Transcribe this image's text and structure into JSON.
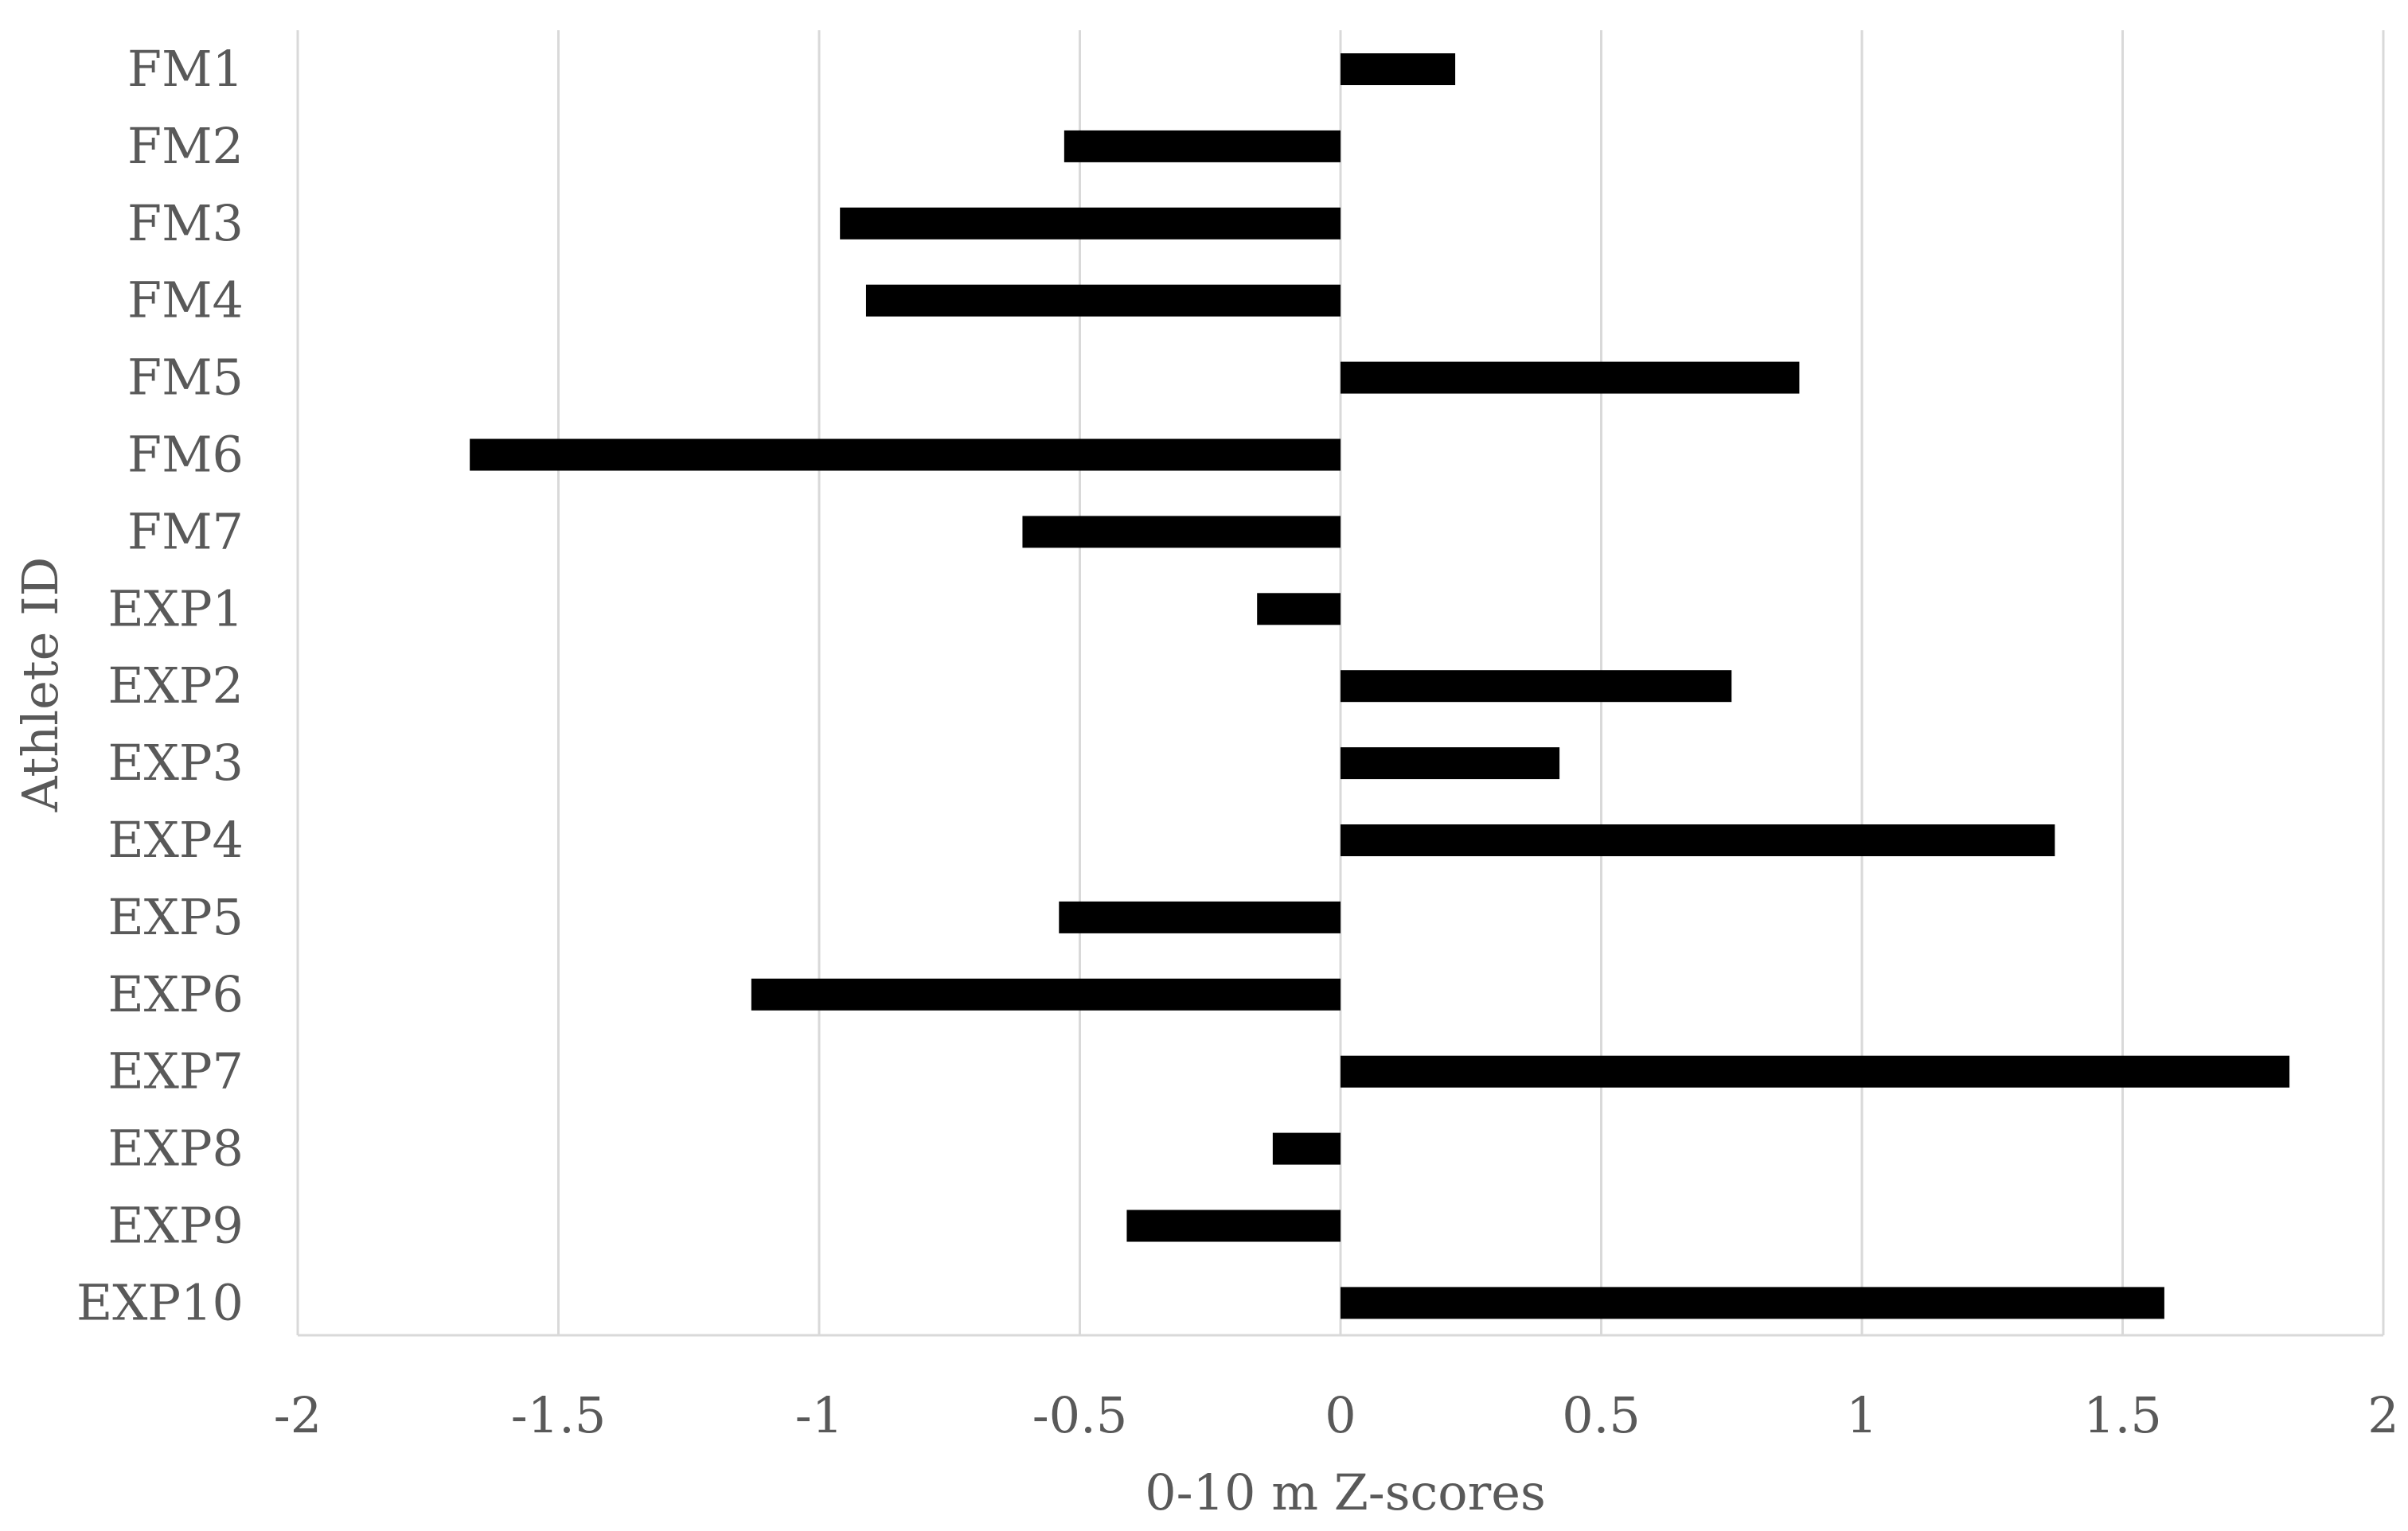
{
  "chart_data": {
    "type": "bar",
    "orientation": "horizontal",
    "title": "",
    "xlabel": "0-10 m Z-scores",
    "ylabel": "Athlete ID",
    "xlim": [
      -2,
      2
    ],
    "xticks": [
      -2,
      -1.5,
      -1,
      -0.5,
      0,
      0.5,
      1,
      1.5,
      2
    ],
    "xtick_labels": [
      "-2",
      "-1.5",
      "-1",
      "-0.5",
      "0",
      "0.5",
      "1",
      "1.5",
      "2"
    ],
    "grid": "vertical",
    "legend": "none",
    "bar_color": "#000000",
    "grid_color": "#d9d9d9",
    "text_color": "#595959",
    "categories": [
      "FM1",
      "FM2",
      "FM3",
      "FM4",
      "FM5",
      "FM6",
      "FM7",
      "EXP1",
      "EXP2",
      "EXP3",
      "EXP4",
      "EXP5",
      "EXP6",
      "EXP7",
      "EXP8",
      "EXP9",
      "EXP10"
    ],
    "values": [
      0.22,
      -0.53,
      -0.96,
      -0.91,
      0.88,
      -1.67,
      -0.61,
      -0.16,
      0.75,
      0.42,
      1.37,
      -0.54,
      -1.13,
      1.82,
      -0.13,
      -0.41,
      1.58
    ]
  }
}
